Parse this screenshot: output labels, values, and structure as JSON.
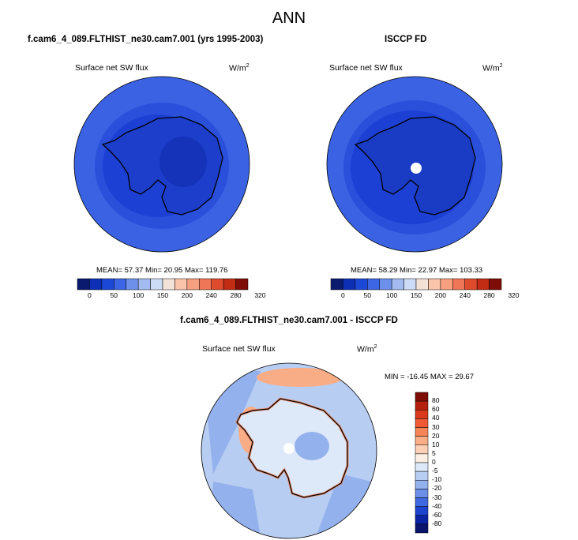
{
  "main_title": "ANN",
  "panels": [
    {
      "title": "f.cam6_4_089.FLTHIST_ne30.cam7.001 (yrs 1995-2003)",
      "variable": "Surface net SW flux",
      "units": "W/m",
      "units_sup": "2",
      "stats": "MEAN=  57.37  Min=  20.95  Max= 119.76"
    },
    {
      "title": "ISCCP FD",
      "variable": "Surface net SW flux",
      "units": "W/m",
      "units_sup": "2",
      "stats": "MEAN=  58.29  Min=  22.97  Max= 103.33"
    },
    {
      "title": "f.cam6_4_089.FLTHIST_ne30.cam7.001 - ISCCP FD",
      "variable": "Surface net SW flux",
      "units": "W/m",
      "units_sup": "2",
      "stats": "MIN = -16.45 MAX =  29.67"
    }
  ],
  "colorbar_abs": {
    "ticks": [
      "0",
      "50",
      "100",
      "150",
      "200",
      "240",
      "280",
      "320"
    ],
    "colors": [
      "#0a1a6e",
      "#0d2fb5",
      "#1c48d8",
      "#3c66e3",
      "#6d90ea",
      "#a3bbf0",
      "#cddcf6",
      "#f3e2d8",
      "#f9c4a9",
      "#f6a07f",
      "#ef7656",
      "#de4a2c",
      "#c22b14",
      "#7d0d06"
    ]
  },
  "colorbar_diff": {
    "ticks": [
      "80",
      "60",
      "40",
      "30",
      "20",
      "10",
      "5",
      "0",
      "-5",
      "-10",
      "-20",
      "-30",
      "-40",
      "-60",
      "-80"
    ],
    "colors": [
      "#7d0d06",
      "#b41f0e",
      "#d93a1c",
      "#ef5a34",
      "#f78457",
      "#f9ad86",
      "#fbd0b7",
      "#fbefe4",
      "#dde8f8",
      "#b8cdf2",
      "#93b1ec",
      "#6b8fe6",
      "#3f69de",
      "#1c44cf",
      "#0a23a3",
      "#0a146b"
    ]
  }
}
